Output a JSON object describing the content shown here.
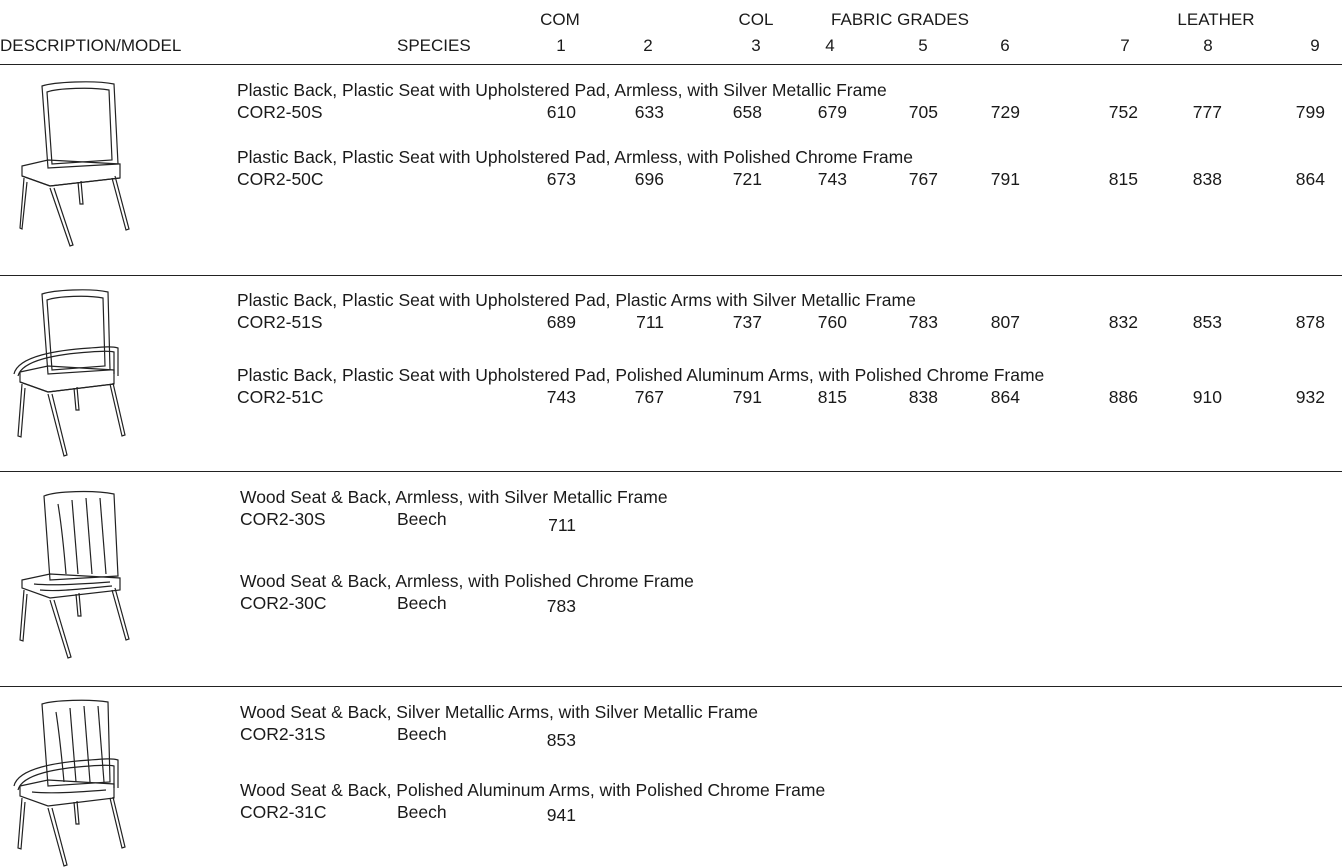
{
  "header": {
    "description_model": "DESCRIPTION/MODEL",
    "species": "SPECIES",
    "group_com": "COM",
    "group_col": "COL",
    "group_fabric": "FABRIC GRADES",
    "group_leather": "LEATHER",
    "grades": [
      "1",
      "2",
      "3",
      "4",
      "5",
      "6",
      "7",
      "8",
      "9"
    ]
  },
  "sections": [
    {
      "image": "armless-upholstered-chair-illustration",
      "items": [
        {
          "description": "Plastic Back, Plastic Seat with Upholstered Pad, Armless, with Silver Metallic Frame",
          "model": "COR2-50S",
          "species": "",
          "prices": [
            "610",
            "633",
            "658",
            "679",
            "705",
            "729",
            "752",
            "777",
            "799"
          ]
        },
        {
          "description": "Plastic Back, Plastic Seat with Upholstered Pad, Armless, with Polished Chrome Frame",
          "model": "COR2-50C",
          "species": "",
          "prices": [
            "673",
            "696",
            "721",
            "743",
            "767",
            "791",
            "815",
            "838",
            "864"
          ]
        }
      ]
    },
    {
      "image": "arm-upholstered-chair-illustration",
      "items": [
        {
          "description": "Plastic Back, Plastic Seat with Upholstered Pad, Plastic Arms with Silver Metallic Frame",
          "model": "COR2-51S",
          "species": "",
          "prices": [
            "689",
            "711",
            "737",
            "760",
            "783",
            "807",
            "832",
            "853",
            "878"
          ]
        },
        {
          "description": "Plastic Back, Plastic Seat with Upholstered Pad, Polished Aluminum Arms, with Polished Chrome Frame",
          "model": "COR2-51C",
          "species": "",
          "prices": [
            "743",
            "767",
            "791",
            "815",
            "838",
            "864",
            "886",
            "910",
            "932"
          ]
        }
      ]
    },
    {
      "image": "armless-wood-chair-illustration",
      "items": [
        {
          "description": "Wood Seat & Back, Armless, with Silver Metallic Frame",
          "model": "COR2-30S",
          "species": "Beech",
          "prices": [
            "711"
          ]
        },
        {
          "description": "Wood Seat & Back, Armless, with Polished Chrome Frame",
          "model": "COR2-30C",
          "species": "Beech",
          "prices": [
            "783"
          ]
        }
      ]
    },
    {
      "image": "arm-wood-chair-illustration",
      "items": [
        {
          "description": "Wood Seat & Back, Silver Metallic Arms, with Silver Metallic Frame",
          "model": "COR2-31S",
          "species": "Beech",
          "prices": [
            "853"
          ]
        },
        {
          "description": "Wood Seat & Back, Polished Aluminum Arms, with Polished Chrome Frame",
          "model": "COR2-31C",
          "species": "Beech",
          "prices": [
            "941"
          ]
        }
      ]
    }
  ]
}
